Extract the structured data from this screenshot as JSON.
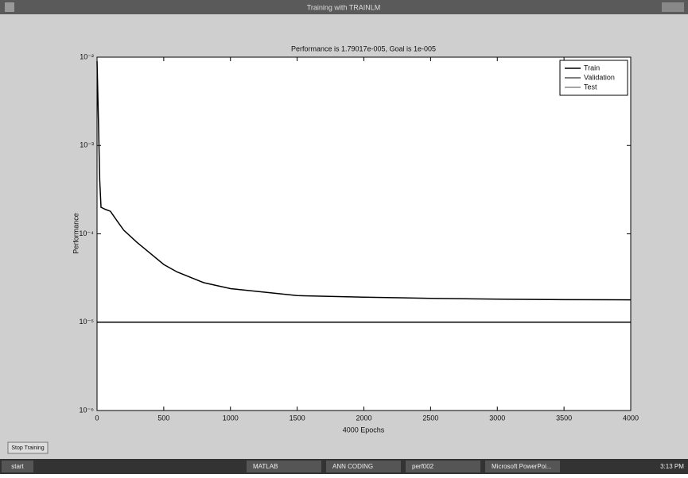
{
  "window": {
    "title": "Training with TRAINLM"
  },
  "chart_data": {
    "type": "line",
    "title": "Performance is 1.79017e-005, Goal is 1e-005",
    "xlabel": "4000 Epochs",
    "ylabel": "Performance",
    "x": [
      0,
      10,
      20,
      30,
      60,
      100,
      150,
      200,
      300,
      400,
      500,
      600,
      800,
      1000,
      1500,
      2000,
      2500,
      3000,
      3500,
      4000
    ],
    "series": [
      {
        "name": "Train",
        "color": "#000000",
        "values": [
          0.009,
          0.002,
          0.0004,
          0.0002,
          0.00019,
          0.00018,
          0.00014,
          0.00011,
          8e-05,
          6e-05,
          4.5e-05,
          3.7e-05,
          2.8e-05,
          2.4e-05,
          2e-05,
          1.92e-05,
          1.86e-05,
          1.82e-05,
          1.8e-05,
          1.79e-05
        ]
      }
    ],
    "legend_entries": [
      {
        "name": "Validation",
        "color": "#555555"
      },
      {
        "name": "Test",
        "color": "#888888"
      }
    ],
    "goal": 1e-05,
    "goal_color": "#000000",
    "xlim": [
      0,
      4000
    ],
    "xticks": [
      0,
      500,
      1000,
      1500,
      2000,
      2500,
      3000,
      3500,
      4000
    ],
    "ylim": [
      1e-06,
      0.01
    ],
    "log_scale": true,
    "yticks": [
      {
        "value": 1e-06,
        "label": "10⁻⁶"
      },
      {
        "value": 1e-05,
        "label": "10⁻⁵"
      },
      {
        "value": 0.0001,
        "label": "10⁻⁴"
      },
      {
        "value": 0.001,
        "label": "10⁻³"
      },
      {
        "value": 0.01,
        "label": "10⁻²"
      }
    ],
    "legend": "upper right"
  },
  "button": "Stop Training",
  "taskbar": {
    "start": "start",
    "items": [
      "MATLAB",
      "ANN CODING",
      "perf002",
      "Microsoft PowerPoi..."
    ],
    "clock": "3:13 PM"
  }
}
